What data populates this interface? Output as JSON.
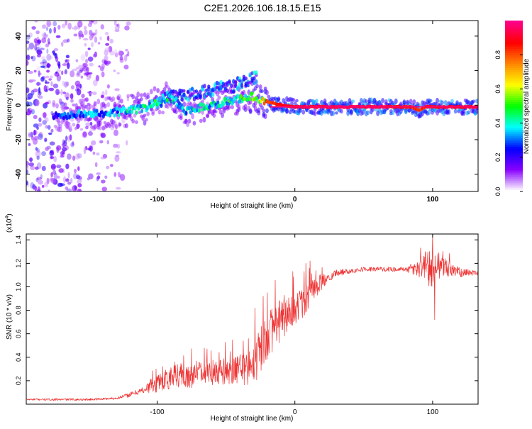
{
  "title": "C2E1.2026.106.18.15.E15",
  "chart_data": [
    {
      "type": "heatmap",
      "name": "spectrogram",
      "xlabel": "Height of straight line (km)",
      "ylabel": "Frequency (Hz)",
      "xlim": [
        -195,
        133
      ],
      "ylim": [
        -50,
        49
      ],
      "xticks": [
        -100,
        0,
        100
      ],
      "yticks": [
        -40,
        -20,
        0,
        20,
        40
      ],
      "colorbar": {
        "label": "Normalized spectral amplitude",
        "range": [
          0,
          1
        ],
        "ticks": [
          0.0,
          0.2,
          0.4,
          0.6,
          0.8
        ],
        "tick_labels": [
          "0.0",
          "0.2",
          "0.4",
          "0.6",
          "0.8"
        ],
        "colors": [
          "#ffffff",
          "#8800ff",
          "#0000ff",
          "#00ffff",
          "#00ff00",
          "#ffff00",
          "#ff8800",
          "#ff0000",
          "#ff0088"
        ]
      },
      "ridge": {
        "x": [
          -170,
          -150,
          -130,
          -110,
          -100,
          -90,
          -80,
          -60,
          -45,
          -30,
          -25,
          -20,
          -10,
          0,
          20,
          60,
          85,
          90,
          95,
          110,
          133
        ],
        "y": [
          -6,
          -5,
          -4,
          -2,
          2,
          5,
          -3,
          0,
          3,
          5,
          3,
          2,
          0,
          -1,
          -1,
          -1,
          -1,
          -3,
          -1,
          -1,
          -1
        ],
        "peak_amplitude": [
          0.3,
          0.35,
          0.4,
          0.45,
          0.5,
          0.45,
          0.4,
          0.45,
          0.5,
          0.55,
          0.7,
          0.85,
          0.9,
          0.95,
          0.97,
          0.97,
          0.9,
          0.85,
          0.9,
          0.95,
          0.95
        ]
      },
      "upper_branch": {
        "x": [
          -100,
          -90,
          -75,
          -60,
          -45,
          -35,
          -28
        ],
        "y": [
          2,
          5,
          6,
          9,
          11,
          14,
          16
        ]
      },
      "noise_region_x": [
        -195,
        -120
      ]
    },
    {
      "type": "line",
      "name": "snr",
      "title": "",
      "xlabel": "Height of straight line (km)",
      "ylabel": "SNR (10 * v/v)",
      "y_scale_label": "(x10",
      "y_scale_exponent": "4",
      "y_scale_close": ")",
      "xlim": [
        -195,
        133
      ],
      "ylim": [
        0,
        1.45
      ],
      "xticks": [
        -100,
        0,
        100
      ],
      "yticks": [
        0.2,
        0.4,
        0.6,
        0.8,
        1.0,
        1.2,
        1.4
      ],
      "ytick_labels": [
        "0.2",
        "0.4",
        "0.6",
        "0.8",
        "1.0",
        "1.2",
        "1.4"
      ],
      "color": "#ee3333",
      "envelope": {
        "x": [
          -195,
          -150,
          -130,
          -120,
          -110,
          -100,
          -90,
          -75,
          -60,
          -45,
          -35,
          -28,
          -22,
          -18,
          -12,
          -5,
          0,
          5,
          12,
          20,
          30,
          50,
          80,
          88,
          95,
          100,
          105,
          110,
          120,
          133
        ],
        "y": [
          0.04,
          0.04,
          0.05,
          0.08,
          0.12,
          0.18,
          0.23,
          0.25,
          0.26,
          0.28,
          0.3,
          0.38,
          0.55,
          0.62,
          0.7,
          0.78,
          0.82,
          0.84,
          0.95,
          1.05,
          1.12,
          1.15,
          1.15,
          1.15,
          1.17,
          1.15,
          1.16,
          1.15,
          1.12,
          1.12
        ]
      },
      "variability": {
        "x": [
          -195,
          -130,
          -110,
          -100,
          -80,
          -50,
          -35,
          -25,
          -15,
          -5,
          5,
          15,
          25,
          40,
          80,
          88,
          98,
          104,
          110,
          120,
          133
        ],
        "y": [
          0.008,
          0.01,
          0.03,
          0.08,
          0.12,
          0.12,
          0.14,
          0.2,
          0.2,
          0.18,
          0.14,
          0.1,
          0.04,
          0.02,
          0.02,
          0.06,
          0.16,
          0.14,
          0.08,
          0.04,
          0.02
        ]
      },
      "spikes": [
        {
          "x": -29,
          "y": 0.82
        },
        {
          "x": -23,
          "y": 0.92
        },
        {
          "x": -20,
          "y": 0.95
        },
        {
          "x": 8,
          "y": 1.2
        },
        {
          "x": 11,
          "y": 1.22
        },
        {
          "x": 100,
          "y": 1.45
        },
        {
          "x": 101.5,
          "y": 0.72
        }
      ]
    }
  ]
}
